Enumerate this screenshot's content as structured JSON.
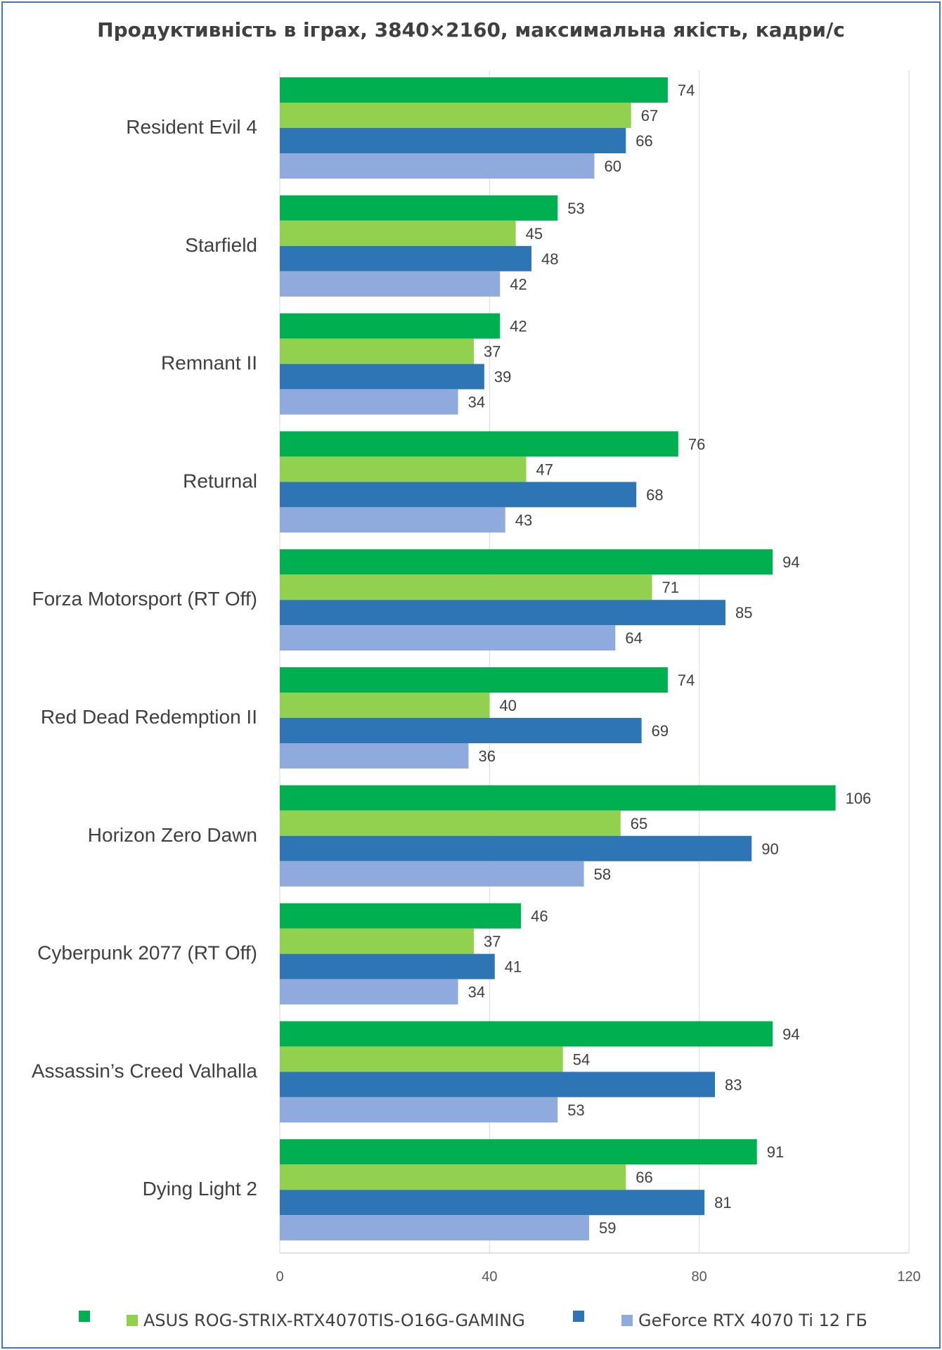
{
  "chart_data": {
    "type": "bar",
    "orientation": "horizontal",
    "title": "Продуктивність в іграх, 3840×2160, максимальна якість, кадри/с",
    "categories": [
      "Resident Evil 4",
      "Starfield",
      "Remnant II",
      "Returnal",
      "Forza Motorsport (RT Off)",
      "Red Dead Redemption II",
      "Horizon Zero Dawn",
      "Cyberpunk 2077 (RT Off)",
      "Assassin’s Creed  Valhalla",
      "Dying Light 2"
    ],
    "series": [
      {
        "name": "",
        "color": "#00b050",
        "values": [
          74,
          53,
          42,
          76,
          94,
          74,
          106,
          46,
          94,
          91
        ]
      },
      {
        "name": "ASUS ROG-STRIX-RTX4070TIS-O16G-GAMING",
        "color": "#92d050",
        "values": [
          67,
          45,
          37,
          47,
          71,
          40,
          65,
          37,
          54,
          66
        ]
      },
      {
        "name": "",
        "color": "#2e75b6",
        "values": [
          66,
          48,
          39,
          68,
          85,
          69,
          90,
          41,
          83,
          81
        ]
      },
      {
        "name": "GeForce RTX 4070 Ti 12 ГБ",
        "color": "#8faadc",
        "values": [
          60,
          42,
          34,
          43,
          64,
          36,
          58,
          34,
          53,
          59
        ]
      }
    ],
    "xlim": [
      0,
      120
    ],
    "xticks": [
      0,
      40,
      80,
      120
    ],
    "grid": true,
    "legend_position": "bottom"
  }
}
